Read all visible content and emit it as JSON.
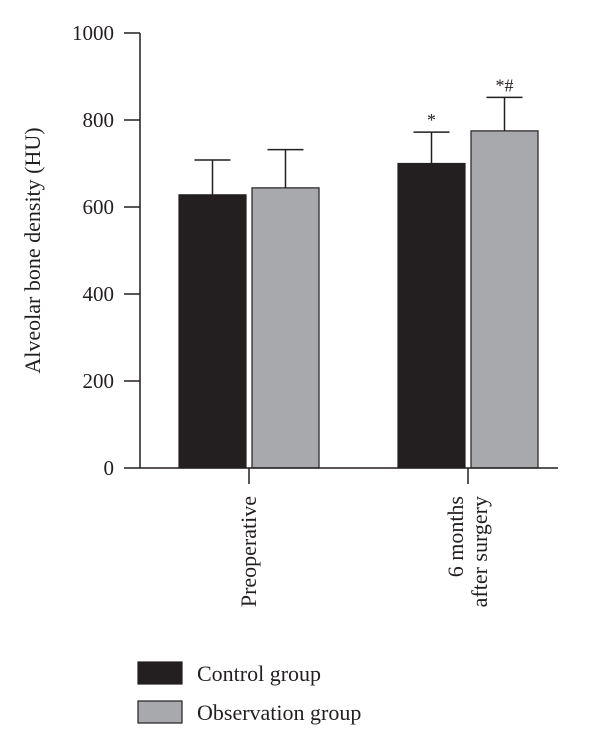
{
  "chart_data": {
    "type": "bar",
    "title": "",
    "ylabel": "Alveolar bone density (HU)",
    "xlabel": "",
    "ylim": [
      0,
      1000
    ],
    "yticks": [
      0,
      200,
      400,
      600,
      800,
      1000
    ],
    "ytick_labels": [
      "0",
      "200",
      "400",
      "600",
      "800",
      "1000"
    ],
    "categories": [
      {
        "lines": [
          "Preoperative"
        ]
      },
      {
        "lines": [
          "6 months",
          "after surgery"
        ]
      }
    ],
    "series": [
      {
        "name": "Control group",
        "color": "#231f20",
        "values": [
          628,
          700
        ],
        "errors": [
          80,
          72
        ],
        "annotations": [
          "",
          "*"
        ]
      },
      {
        "name": "Observation group",
        "color": "#a7a9ac",
        "values": [
          644,
          775
        ],
        "errors": [
          88,
          77
        ],
        "annotations": [
          "",
          "*#"
        ]
      }
    ],
    "legend": {
      "placement": "bottom-left"
    }
  }
}
